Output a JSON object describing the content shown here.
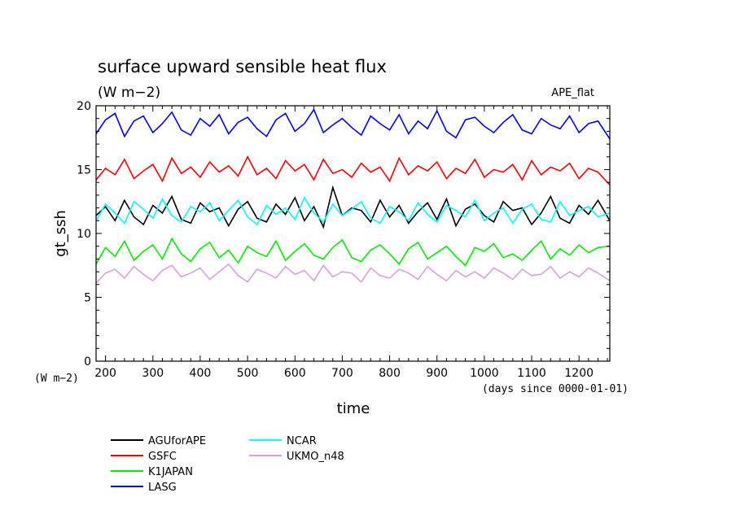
{
  "chart_data": {
    "type": "line",
    "title": "surface upward sensible heat flux",
    "subtitle": "(W m−2)",
    "dataset_label": "APE_flat",
    "xlabel": "time",
    "x_units": "(days since 0000-01-01)",
    "ylabel": "gt_ssh",
    "y_units": "(W m−2)",
    "xlim": [
      180,
      1265
    ],
    "ylim": [
      0,
      20
    ],
    "x_ticks": [
      200,
      300,
      400,
      500,
      600,
      700,
      800,
      900,
      1000,
      1100,
      1200
    ],
    "y_ticks": [
      0,
      5,
      10,
      15,
      20
    ],
    "grid": false,
    "legend_position": "bottom-left",
    "x": [
      180,
      200,
      220,
      240,
      260,
      280,
      300,
      320,
      340,
      360,
      380,
      400,
      420,
      440,
      460,
      480,
      500,
      520,
      540,
      560,
      580,
      600,
      620,
      640,
      660,
      680,
      700,
      720,
      740,
      760,
      780,
      800,
      820,
      840,
      860,
      880,
      900,
      920,
      940,
      960,
      980,
      1000,
      1020,
      1040,
      1060,
      1080,
      1100,
      1120,
      1140,
      1160,
      1180,
      1200,
      1220,
      1240,
      1265
    ],
    "series": [
      {
        "name": "AGUforAPE",
        "color": "#000000",
        "values": [
          11.4,
          12.1,
          11.0,
          12.6,
          11.3,
          10.7,
          12.2,
          11.6,
          12.9,
          11.1,
          10.8,
          12.4,
          11.7,
          12.0,
          10.6,
          11.9,
          12.5,
          11.2,
          10.9,
          12.3,
          11.5,
          12.8,
          11.0,
          12.1,
          10.5,
          13.6,
          11.4,
          12.0,
          11.8,
          10.9,
          12.6,
          11.3,
          12.2,
          10.8,
          11.7,
          12.4,
          11.1,
          12.7,
          10.6,
          11.9,
          12.3,
          11.4,
          10.9,
          12.5,
          11.8,
          12.0,
          10.7,
          11.6,
          12.9,
          11.2,
          10.8,
          12.2,
          11.5,
          12.6,
          11.0
        ]
      },
      {
        "name": "GSFC",
        "color": "#ff0000",
        "values": [
          14.2,
          15.1,
          14.6,
          15.8,
          14.3,
          14.9,
          15.4,
          14.1,
          15.9,
          14.7,
          15.2,
          14.4,
          15.6,
          14.8,
          15.3,
          14.5,
          16.0,
          14.6,
          15.1,
          14.3,
          15.7,
          14.9,
          15.4,
          14.2,
          15.8,
          14.7,
          15.0,
          14.4,
          15.5,
          14.8,
          15.2,
          14.1,
          15.9,
          14.6,
          15.3,
          14.9,
          15.6,
          14.3,
          15.1,
          14.7,
          15.8,
          14.4,
          15.0,
          14.8,
          15.4,
          14.2,
          15.7,
          14.6,
          15.2,
          14.9,
          15.5,
          14.3,
          15.1,
          14.8,
          13.8
        ]
      },
      {
        "name": "K1JAPAN",
        "color": "#00ee00",
        "values": [
          7.6,
          8.9,
          8.2,
          9.4,
          7.9,
          8.6,
          9.1,
          8.0,
          9.6,
          8.4,
          7.8,
          8.8,
          9.3,
          8.1,
          8.7,
          7.7,
          9.0,
          8.5,
          8.2,
          9.4,
          7.9,
          8.6,
          9.2,
          8.3,
          8.0,
          8.9,
          9.5,
          8.1,
          7.8,
          8.7,
          9.1,
          8.4,
          7.6,
          8.8,
          9.3,
          8.0,
          8.5,
          9.0,
          8.2,
          7.5,
          8.9,
          8.6,
          9.2,
          8.1,
          8.4,
          7.9,
          8.7,
          9.4,
          8.0,
          8.8,
          8.3,
          9.1,
          8.5,
          8.9,
          9.0
        ]
      },
      {
        "name": "LASG",
        "color": "#0000ff",
        "values": [
          17.8,
          18.9,
          19.4,
          17.6,
          18.8,
          19.2,
          17.9,
          18.6,
          19.5,
          18.1,
          17.7,
          19.0,
          18.4,
          19.3,
          17.8,
          18.7,
          19.1,
          18.2,
          17.6,
          18.9,
          19.4,
          18.0,
          18.6,
          19.7,
          17.9,
          18.5,
          19.0,
          18.3,
          17.7,
          19.2,
          18.6,
          18.1,
          19.3,
          17.8,
          18.8,
          18.2,
          19.6,
          18.0,
          17.5,
          18.9,
          19.1,
          18.4,
          17.9,
          18.7,
          19.3,
          18.1,
          17.8,
          19.0,
          18.5,
          18.2,
          19.2,
          17.9,
          18.6,
          18.8,
          17.4
        ]
      },
      {
        "name": "NCAR",
        "color": "#00ffff",
        "values": [
          11.0,
          12.3,
          11.6,
          10.8,
          12.5,
          11.9,
          11.2,
          12.7,
          11.4,
          10.9,
          12.1,
          11.7,
          12.4,
          11.0,
          11.8,
          12.6,
          11.3,
          10.7,
          12.2,
          11.5,
          12.0,
          11.1,
          12.8,
          11.6,
          10.9,
          12.3,
          11.4,
          11.9,
          12.5,
          11.2,
          10.8,
          12.1,
          11.7,
          11.0,
          12.4,
          11.5,
          10.9,
          12.2,
          11.8,
          11.3,
          12.6,
          11.0,
          11.6,
          12.0,
          10.8,
          11.9,
          12.3,
          11.1,
          10.9,
          12.5,
          11.4,
          11.8,
          12.1,
          11.3,
          11.6
        ]
      },
      {
        "name": "UKMO_n48",
        "color": "#dda0dd",
        "values": [
          6.1,
          6.9,
          7.2,
          6.5,
          7.4,
          6.8,
          6.3,
          7.1,
          7.5,
          6.6,
          6.9,
          7.3,
          6.4,
          7.0,
          7.6,
          6.7,
          6.2,
          7.2,
          6.9,
          6.5,
          7.4,
          6.8,
          7.1,
          6.3,
          7.5,
          6.6,
          7.0,
          6.9,
          6.2,
          7.3,
          6.7,
          6.5,
          7.2,
          6.9,
          6.4,
          7.4,
          6.8,
          6.3,
          7.1,
          6.6,
          7.0,
          6.5,
          7.3,
          6.9,
          6.4,
          7.2,
          6.7,
          6.8,
          7.4,
          6.5,
          7.0,
          6.6,
          7.3,
          6.9,
          6.3
        ]
      }
    ]
  }
}
